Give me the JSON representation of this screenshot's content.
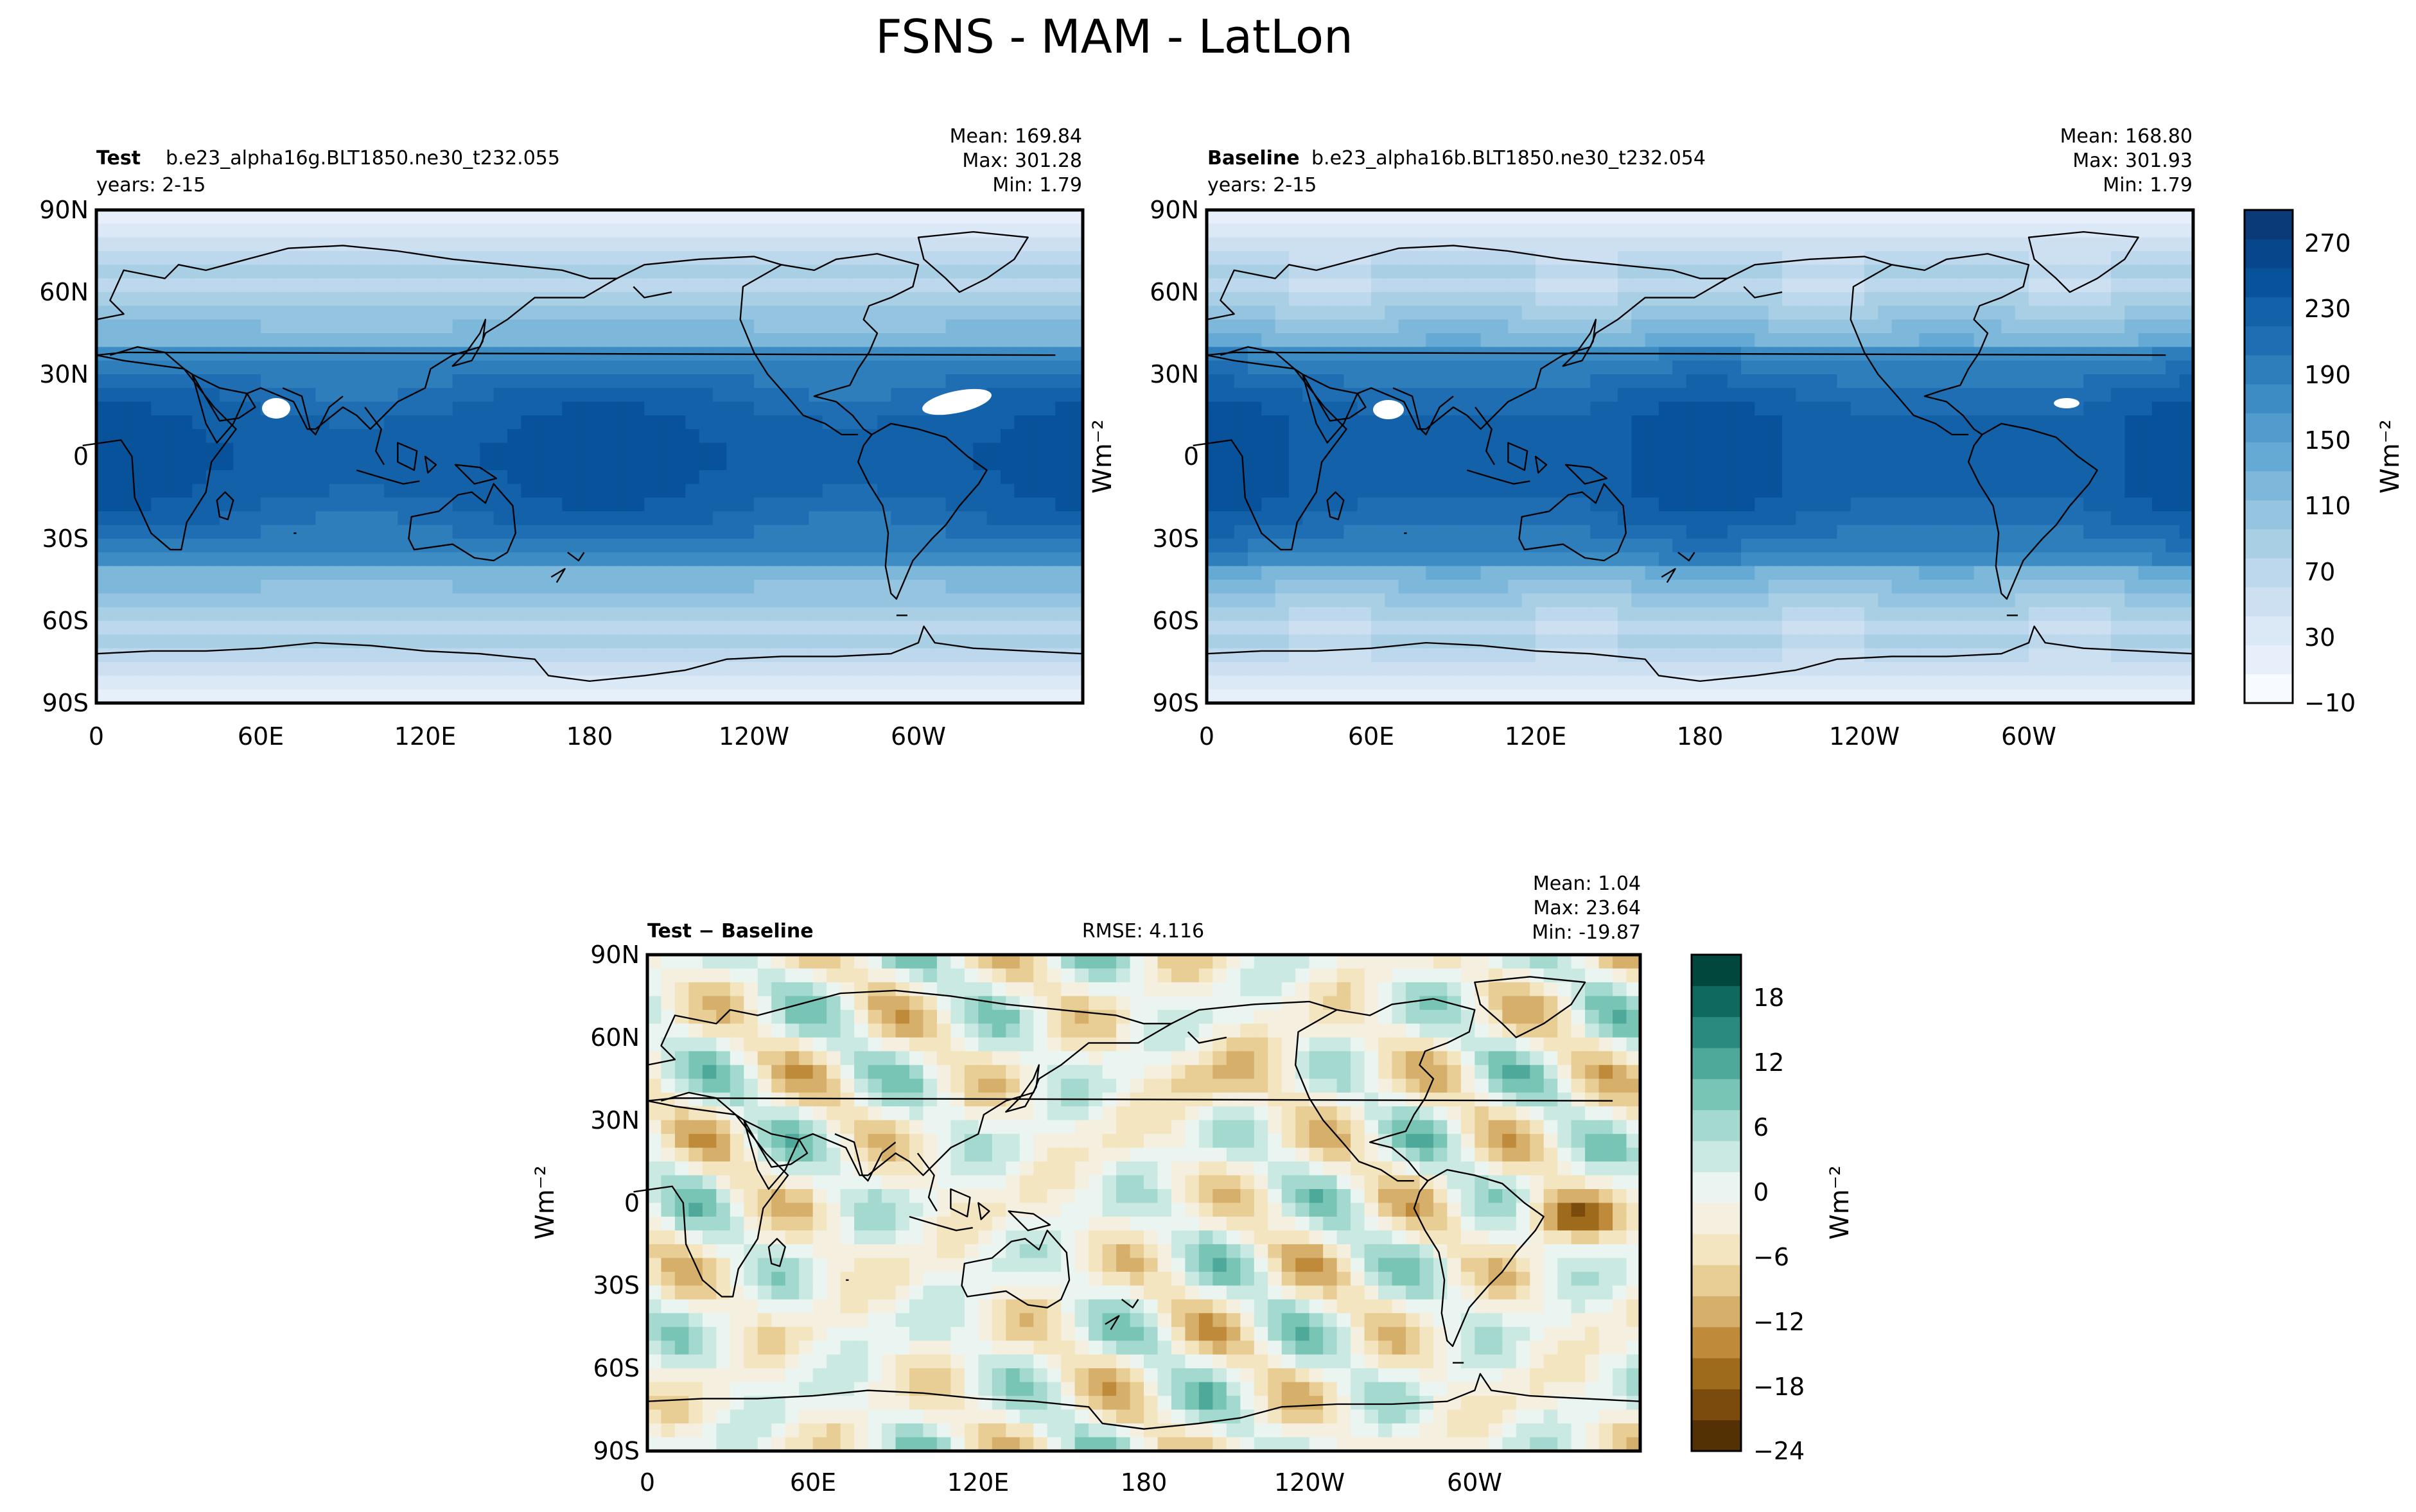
{
  "figure": {
    "title": "FSNS - MAM - LatLon"
  },
  "colors": {
    "blues": [
      "#f7fbff",
      "#e7f0fa",
      "#dbe9f6",
      "#cde0f1",
      "#bdd7ec",
      "#a9cfe5",
      "#94c4df",
      "#7db8da",
      "#65aad4",
      "#519ccc",
      "#3d8dc4",
      "#2e7ebc",
      "#1f6eb3",
      "#1361a9",
      "#08529b",
      "#08468b",
      "#0a3b78"
    ],
    "brbg": [
      "#543005",
      "#7a4b0c",
      "#9e6a1c",
      "#bf8b3a",
      "#d6af6a",
      "#e8cd95",
      "#f3e5bf",
      "#f5efdf",
      "#eaf5f2",
      "#c9e9e2",
      "#a3d9ce",
      "#78c5b6",
      "#4ea99b",
      "#2b8a80",
      "#10695f",
      "#01473d"
    ],
    "continent_line": "#000000"
  },
  "chart_data": [
    {
      "id": "test",
      "type": "heatmap",
      "title_bold": "Test",
      "title": "b.e23_alpha16g.BLT1850.ne30_t232.055",
      "subtitle": "years: 2-15",
      "stats": [
        "Mean: 169.84",
        "Max: 301.28",
        "Min:  1.79"
      ],
      "field": "FSNS",
      "units": "Wm⁻²",
      "x_ticks": [
        "0",
        "60E",
        "120E",
        "180",
        "120W",
        "60W"
      ],
      "y_ticks": [
        "90N",
        "60N",
        "30N",
        "0",
        "30S",
        "60S",
        "90S"
      ],
      "xlim": [
        0,
        360
      ],
      "ylim": [
        -90,
        90
      ],
      "mean": 169.84,
      "max": 301.28,
      "min": 1.79
    },
    {
      "id": "baseline",
      "type": "heatmap",
      "title_bold": "Baseline",
      "title": "b.e23_alpha16b.BLT1850.ne30_t232.054",
      "subtitle": "years: 2-15",
      "stats": [
        "Mean: 168.80",
        "Max: 301.93",
        "Min:  1.79"
      ],
      "units": "Wm⁻²",
      "x_ticks": [
        "0",
        "60E",
        "120E",
        "180",
        "120W",
        "60W"
      ],
      "y_ticks": [
        "90N",
        "60N",
        "30N",
        "0",
        "30S",
        "60S",
        "90S"
      ],
      "xlim": [
        0,
        360
      ],
      "ylim": [
        -90,
        90
      ],
      "mean": 168.8,
      "max": 301.93,
      "min": 1.79,
      "colorbar": {
        "ticks": [
          "270",
          "230",
          "190",
          "150",
          "110",
          "70",
          "30",
          "−10"
        ],
        "levels": [
          -10,
          290
        ],
        "label": "Wm⁻²"
      }
    },
    {
      "id": "diff",
      "type": "heatmap",
      "title_bold": "Test − Baseline",
      "rmse": "RMSE: 4.116",
      "stats": [
        "Mean:  1.04",
        "Max: 23.64",
        "Min: -19.87"
      ],
      "units": "Wm⁻²",
      "x_ticks": [
        "0",
        "60E",
        "120E",
        "180",
        "120W",
        "60W"
      ],
      "y_ticks": [
        "90N",
        "60N",
        "30N",
        "0",
        "30S",
        "60S",
        "90S"
      ],
      "xlim": [
        0,
        360
      ],
      "ylim": [
        -90,
        90
      ],
      "mean": 1.04,
      "max": 23.64,
      "min": -19.87,
      "colorbar": {
        "ticks": [
          "18",
          "12",
          "6",
          "0",
          "−6",
          "−12",
          "−18",
          "−24"
        ],
        "levels": [
          -24,
          22
        ],
        "label": "Wm⁻²"
      }
    }
  ]
}
